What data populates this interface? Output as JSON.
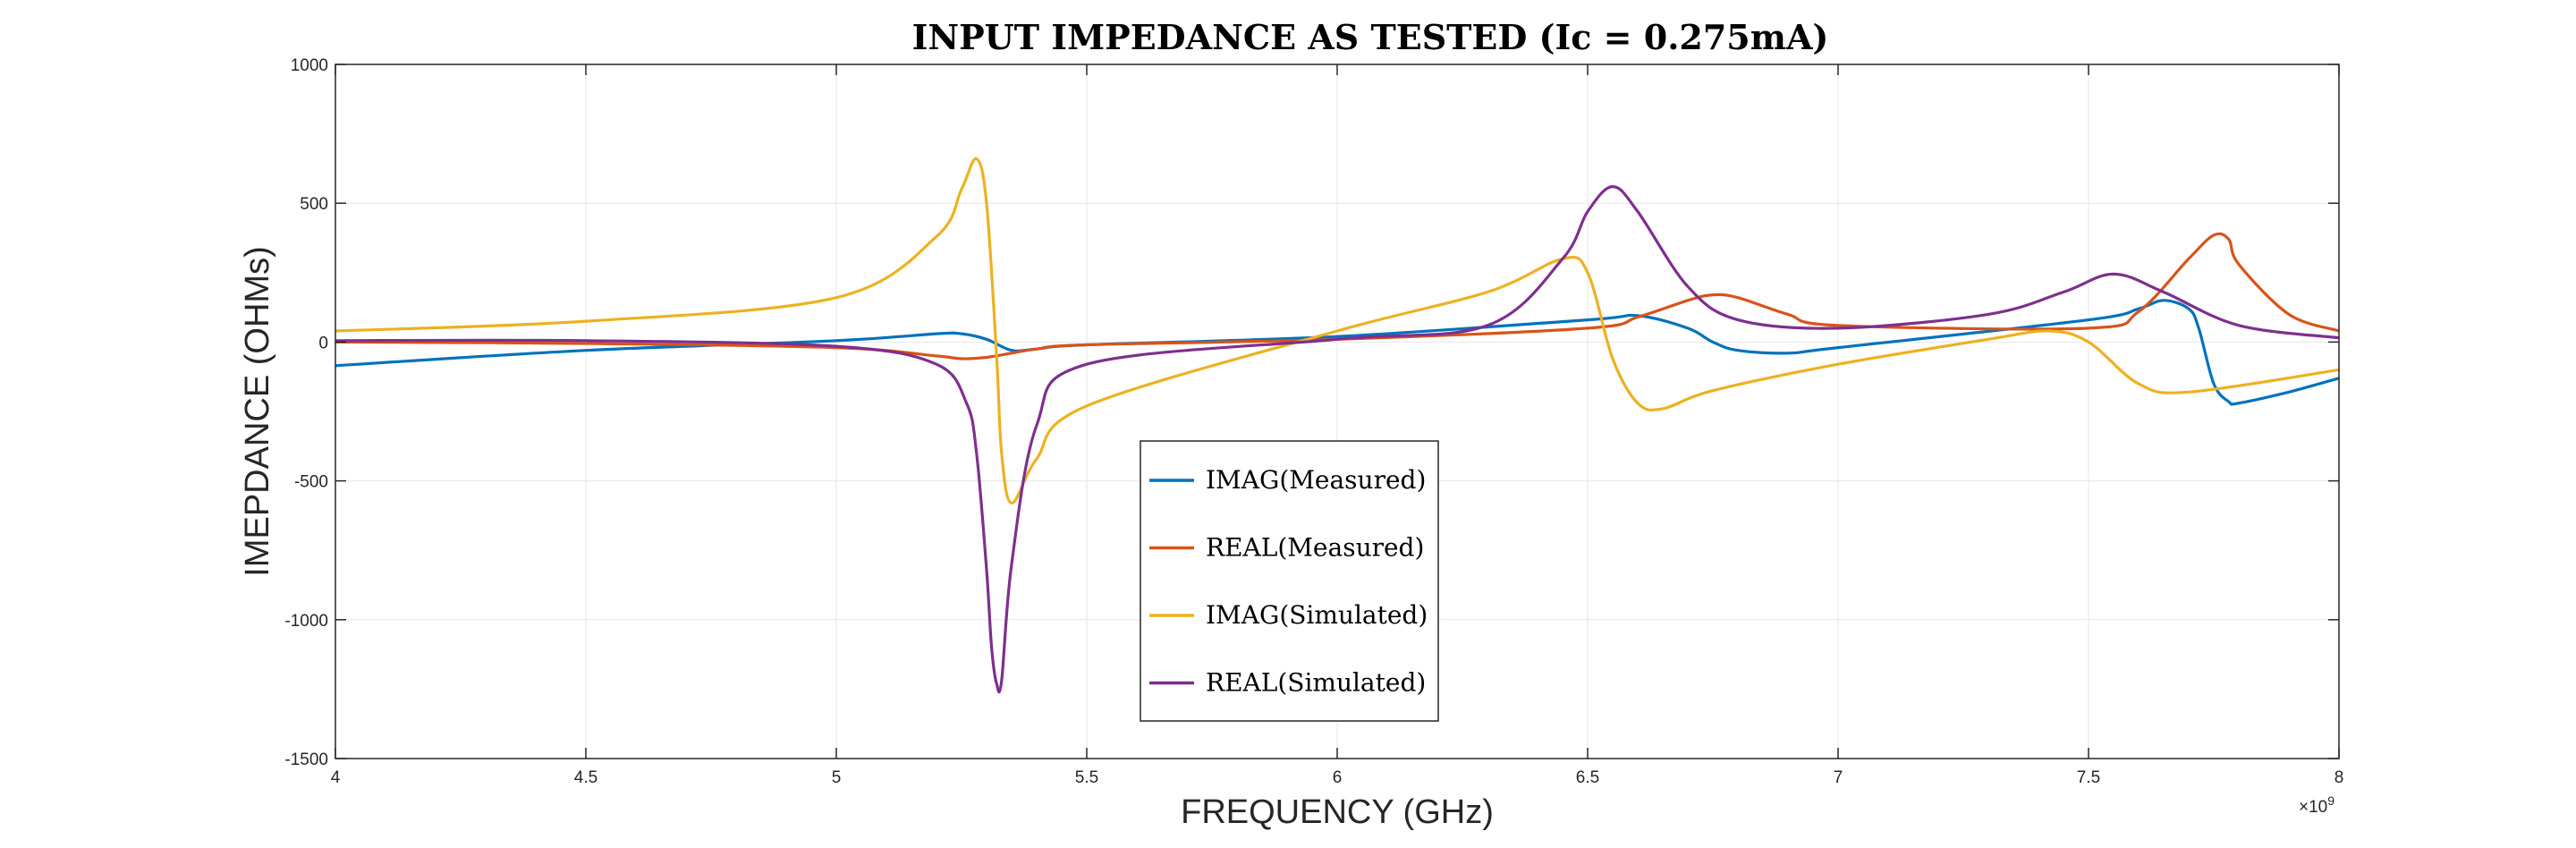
{
  "chart_data": {
    "type": "line",
    "title": "INPUT IMPEDANCE AS TESTED (Ic = 0.275mA)",
    "xlabel": "FREQUENCY (GHz)",
    "ylabel": "IMEPDANCE (OHMs)",
    "x_exponent_label": "×10⁹",
    "x_exponent_base": "×10",
    "x_exponent_power": "9",
    "xlim": [
      4.0,
      8.0
    ],
    "ylim": [
      -1500,
      1000
    ],
    "x_ticks": [
      4,
      4.5,
      5,
      5.5,
      6,
      6.5,
      7,
      7.5,
      8
    ],
    "x_tick_labels": [
      "4",
      "4.5",
      "5",
      "5.5",
      "6",
      "6.5",
      "7",
      "7.5",
      "8"
    ],
    "y_ticks": [
      -1500,
      -1000,
      -500,
      0,
      500,
      1000
    ],
    "y_tick_labels": [
      "-1500",
      "-1000",
      "-500",
      "0",
      "500",
      "1000"
    ],
    "grid": true,
    "legend_position": "bottom-center",
    "series": [
      {
        "name": "IMAG(Measured)",
        "color": "#0072BD",
        "x": [
          4.0,
          4.5,
          5.0,
          5.2,
          5.25,
          5.3,
          5.35,
          5.4,
          5.5,
          6.0,
          6.5,
          6.6,
          6.7,
          6.75,
          6.8,
          6.9,
          7.0,
          7.5,
          7.6,
          7.65,
          7.7,
          7.72,
          7.75,
          7.78,
          7.8,
          7.9,
          8.0
        ],
        "y": [
          -85,
          -30,
          5,
          30,
          30,
          10,
          -30,
          -25,
          -10,
          20,
          80,
          95,
          50,
          0,
          -30,
          -40,
          -20,
          80,
          120,
          150,
          120,
          50,
          -150,
          -215,
          -220,
          -180,
          -130
        ]
      },
      {
        "name": "REAL(Measured)",
        "color": "#D95319",
        "x": [
          4.0,
          4.5,
          5.0,
          5.2,
          5.25,
          5.3,
          5.35,
          5.4,
          5.5,
          6.0,
          6.5,
          6.6,
          6.7,
          6.75,
          6.8,
          6.9,
          7.0,
          7.5,
          7.6,
          7.7,
          7.75,
          7.78,
          7.8,
          7.9,
          8.0
        ],
        "y": [
          0,
          -5,
          -20,
          -50,
          -60,
          -55,
          -40,
          -25,
          -10,
          10,
          50,
          90,
          150,
          170,
          160,
          100,
          60,
          50,
          110,
          300,
          385,
          370,
          280,
          100,
          40
        ]
      },
      {
        "name": "IMAG(Simulated)",
        "color": "#EDB120",
        "x": [
          4.0,
          4.5,
          5.0,
          5.2,
          5.25,
          5.28,
          5.3,
          5.32,
          5.33,
          5.35,
          5.4,
          5.5,
          6.0,
          6.3,
          6.45,
          6.5,
          6.55,
          6.6,
          6.65,
          6.75,
          7.0,
          7.3,
          7.42,
          7.5,
          7.6,
          7.7,
          8.0
        ],
        "y": [
          40,
          75,
          160,
          380,
          550,
          660,
          500,
          -50,
          -400,
          -580,
          -420,
          -230,
          40,
          180,
          300,
          250,
          -60,
          -220,
          -240,
          -175,
          -80,
          10,
          40,
          0,
          -150,
          -180,
          -100
        ]
      },
      {
        "name": "REAL(Simulated)",
        "color": "#7E2F8E",
        "x": [
          4.0,
          4.5,
          5.0,
          5.2,
          5.26,
          5.28,
          5.3,
          5.31,
          5.32,
          5.33,
          5.35,
          5.4,
          5.5,
          6.0,
          6.3,
          6.45,
          6.5,
          6.55,
          6.6,
          6.7,
          6.8,
          7.0,
          7.3,
          7.45,
          7.55,
          7.65,
          7.8,
          8.0
        ],
        "y": [
          5,
          5,
          -15,
          -80,
          -220,
          -400,
          -820,
          -1100,
          -1230,
          -1220,
          -800,
          -300,
          -80,
          10,
          60,
          300,
          470,
          560,
          470,
          200,
          80,
          50,
          100,
          180,
          245,
          180,
          60,
          15
        ]
      }
    ]
  }
}
